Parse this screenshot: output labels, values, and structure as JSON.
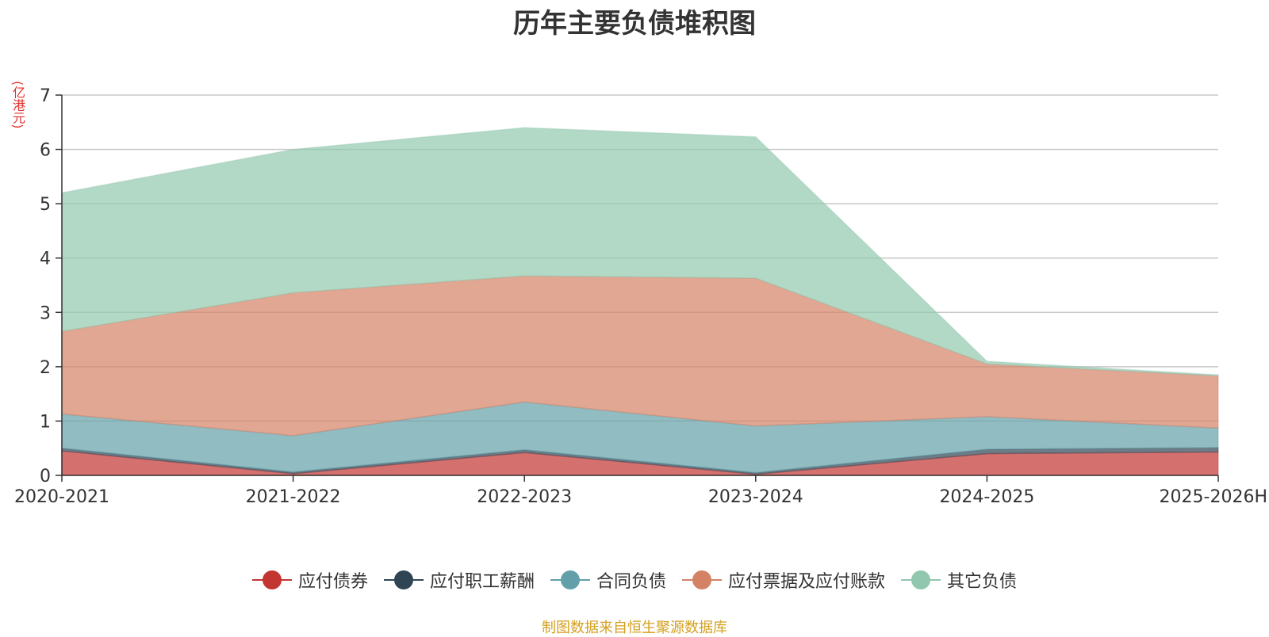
{
  "chart_data": {
    "type": "area",
    "stacked": true,
    "title": "历年主要负债堆积图",
    "ylabel": "(亿港元)",
    "xlabel": "",
    "categories": [
      "2020-2021",
      "2021-2022",
      "2022-2023",
      "2023-2024",
      "2024-2025",
      "2025-2026H"
    ],
    "ylim": [
      0,
      7
    ],
    "yticks": [
      0,
      1,
      2,
      3,
      4,
      5,
      6,
      7
    ],
    "grid": true,
    "legend_position": "bottom",
    "series": [
      {
        "name": "应付债券",
        "color": "#c23531",
        "values": [
          0.45,
          0.03,
          0.42,
          0.02,
          0.4,
          0.43
        ]
      },
      {
        "name": "应付职工薪酬",
        "color": "#2f4554",
        "values": [
          0.05,
          0.03,
          0.05,
          0.03,
          0.08,
          0.08
        ]
      },
      {
        "name": "合同负债",
        "color": "#61a0a8",
        "values": [
          0.63,
          0.67,
          0.88,
          0.86,
          0.6,
          0.36
        ]
      },
      {
        "name": "应付票据及应付账款",
        "color": "#d48265",
        "values": [
          1.52,
          2.63,
          2.32,
          2.72,
          0.97,
          0.96
        ]
      },
      {
        "name": "其它负债",
        "color": "#91c7ae",
        "values": [
          2.55,
          2.64,
          2.73,
          2.6,
          0.05,
          0.02
        ]
      }
    ]
  },
  "source_note": "制图数据来自恒生聚源数据库"
}
